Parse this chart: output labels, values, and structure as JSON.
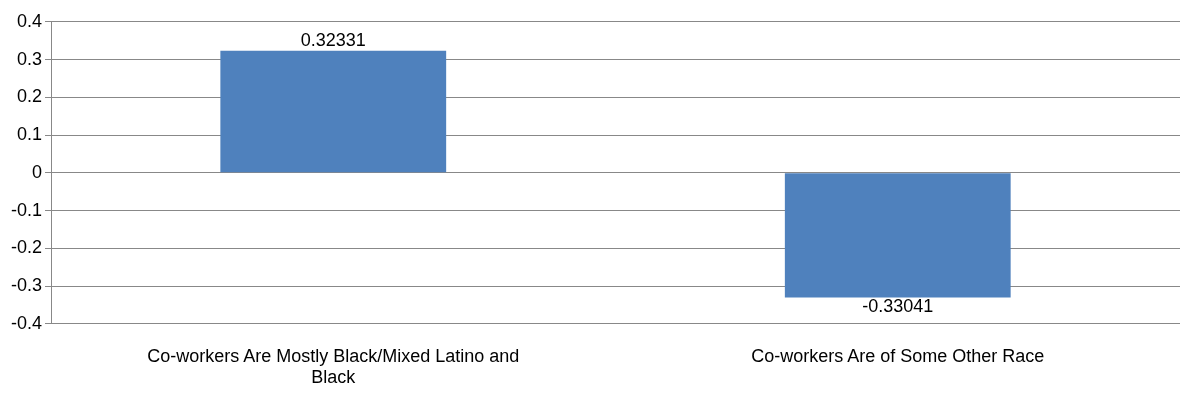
{
  "chart_data": {
    "type": "bar",
    "categories": [
      "Co-workers Are Mostly Black/Mixed Latino and Black",
      "Co-workers Are of Some Other Race"
    ],
    "values": [
      0.32331,
      -0.33041
    ],
    "color": "#4f81bd",
    "ylim": [
      -0.4,
      0.4
    ],
    "yticks": [
      -0.4,
      -0.3,
      -0.2,
      -0.1,
      0,
      0.1,
      0.2,
      0.3,
      0.4
    ],
    "grid": "y",
    "data_labels": true
  }
}
